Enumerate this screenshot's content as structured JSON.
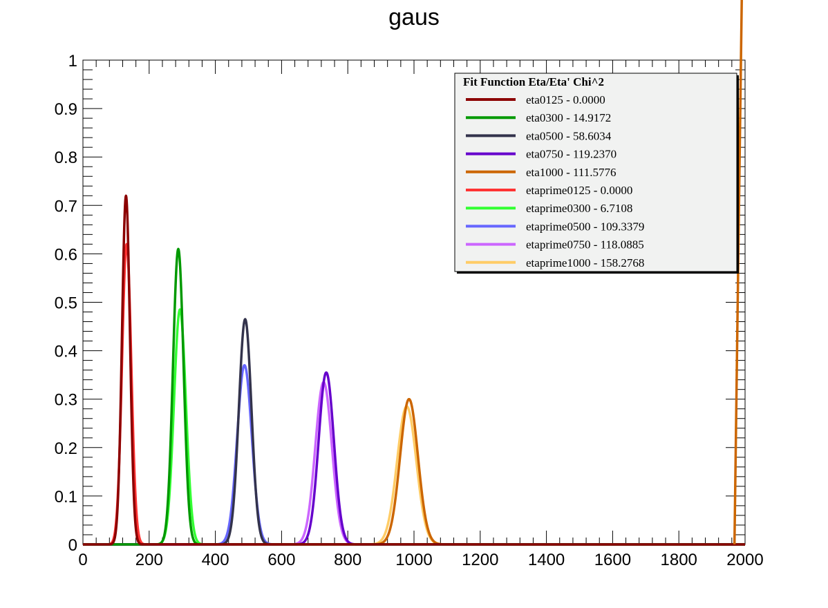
{
  "chart_data": {
    "type": "line",
    "title": "gaus",
    "xlabel": "",
    "ylabel": "",
    "xlim": [
      0,
      2000
    ],
    "ylim": [
      0,
      1
    ],
    "x_ticks": [
      {
        "value": 0,
        "label": "0"
      },
      {
        "value": 200,
        "label": "200"
      },
      {
        "value": 400,
        "label": "400"
      },
      {
        "value": 600,
        "label": "600"
      },
      {
        "value": 800,
        "label": "800"
      },
      {
        "value": 1000,
        "label": "1000"
      },
      {
        "value": 1200,
        "label": "1200"
      },
      {
        "value": 1400,
        "label": "1400"
      },
      {
        "value": 1600,
        "label": "1600"
      },
      {
        "value": 1800,
        "label": "1800"
      },
      {
        "value": 2000,
        "label": "2000"
      }
    ],
    "y_ticks": [
      {
        "value": 0,
        "label": "0"
      },
      {
        "value": 0.1,
        "label": "0.1"
      },
      {
        "value": 0.2,
        "label": "0.2"
      },
      {
        "value": 0.3,
        "label": "0.3"
      },
      {
        "value": 0.4,
        "label": "0.4"
      },
      {
        "value": 0.5,
        "label": "0.5"
      },
      {
        "value": 0.6,
        "label": "0.6"
      },
      {
        "value": 0.7,
        "label": "0.7"
      },
      {
        "value": 0.8,
        "label": "0.8"
      },
      {
        "value": 0.9,
        "label": "0.9"
      },
      {
        "value": 1,
        "label": "1"
      }
    ],
    "grid": false,
    "legend": {
      "placement": "top-right",
      "header": "Fit Function Eta/Eta' Chi^2"
    },
    "series": [
      {
        "name": "eta0125 - 0.0000",
        "color": "#8b0000",
        "mean": 130,
        "sigma": 12,
        "amplitude": 0.72
      },
      {
        "name": "eta0300 - 14.9172",
        "color": "#009900",
        "mean": 288,
        "sigma": 16,
        "amplitude": 0.61
      },
      {
        "name": "eta0500 - 58.6034",
        "color": "#33334c",
        "mean": 490,
        "sigma": 19,
        "amplitude": 0.465
      },
      {
        "name": "eta0750 - 119.2370",
        "color": "#6600cc",
        "mean": 735,
        "sigma": 23,
        "amplitude": 0.355
      },
      {
        "name": "eta1000 - 111.5776",
        "color": "#cc6600",
        "mean": 985,
        "sigma": 27,
        "amplitude": 0.3
      },
      {
        "name": "etaprime0125 - 0.0000",
        "color": "#ff3333",
        "mean": 132,
        "sigma": 14,
        "amplitude": 0.62
      },
      {
        "name": "etaprime0300 - 6.7108",
        "color": "#33ff33",
        "mean": 293,
        "sigma": 18,
        "amplitude": 0.485
      },
      {
        "name": "etaprime0500 - 109.3379",
        "color": "#6666ff",
        "mean": 488,
        "sigma": 22,
        "amplitude": 0.37
      },
      {
        "name": "etaprime0750 - 118.0885",
        "color": "#cc66ff",
        "mean": 727,
        "sigma": 25,
        "amplitude": 0.335
      },
      {
        "name": "etaprime1000 - 158.2768",
        "color": "#ffcc66",
        "mean": 978,
        "sigma": 29,
        "amplitude": 0.285
      }
    ]
  }
}
